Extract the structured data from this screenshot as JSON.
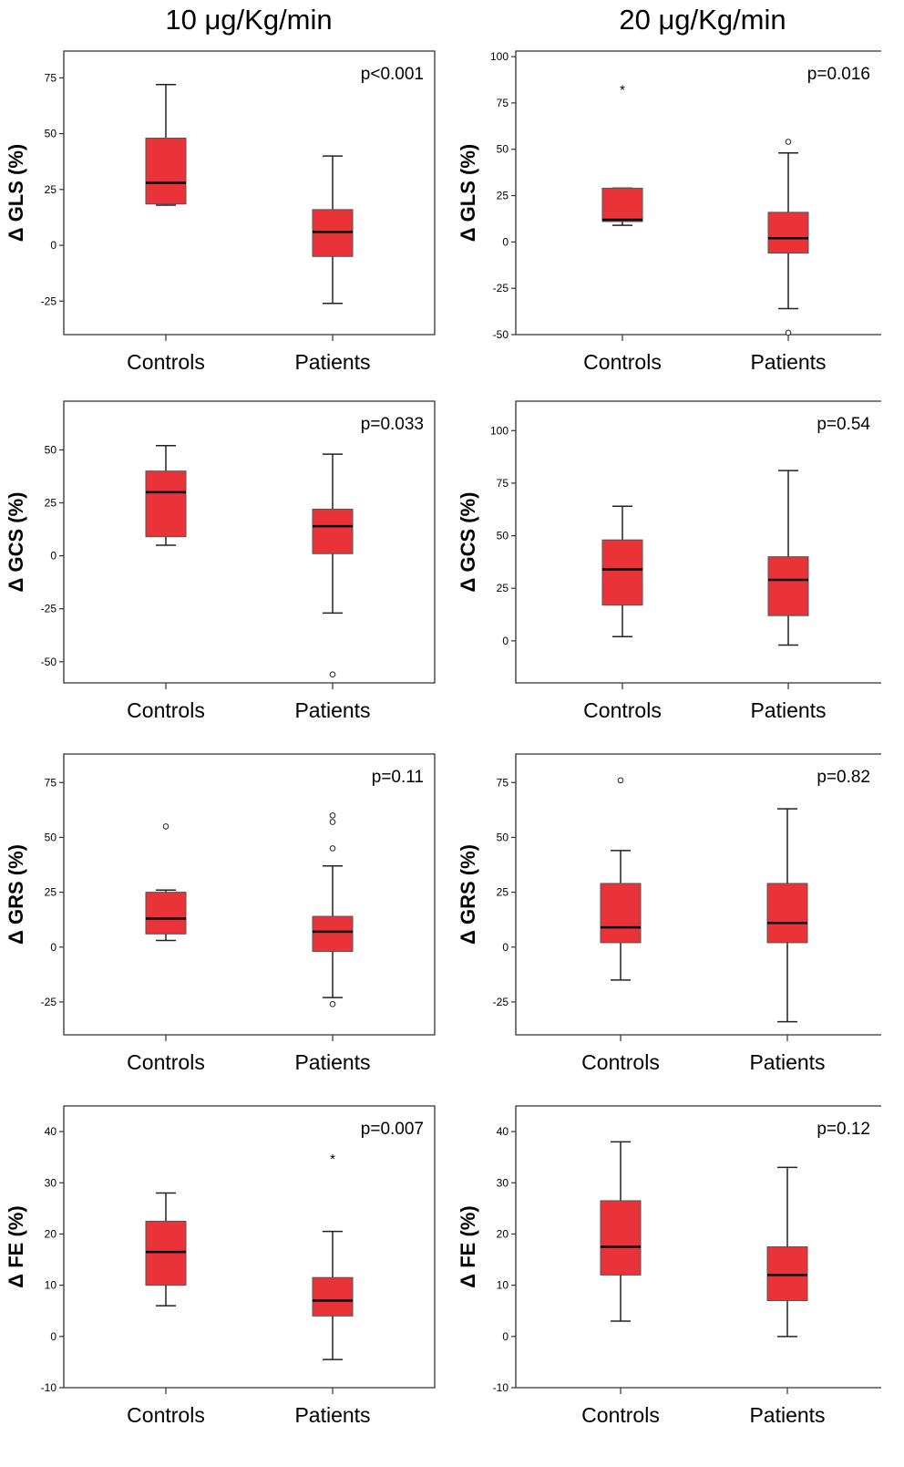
{
  "column_titles": [
    "10 μg/Kg/min",
    "20 μg/Kg/min"
  ],
  "colors": {
    "box_fill": "#ea3339",
    "box_stroke": "#555555",
    "median": "#000000",
    "axis": "#333333"
  },
  "chart_data": [
    {
      "type": "boxplot",
      "ylabel": "Δ GLS (%)",
      "annotation": "p<0.001",
      "yticks": [
        -25,
        0,
        25,
        50,
        75
      ],
      "ylim": [
        -40,
        87
      ],
      "categories": [
        "Controls",
        "Patients"
      ],
      "boxes": [
        {
          "min": 18,
          "q1": 18.5,
          "median": 28,
          "q3": 48,
          "max": 72,
          "outliers": [],
          "extremes": []
        },
        {
          "min": -26,
          "q1": -5,
          "median": 6,
          "q3": 16,
          "max": 40,
          "outliers": [],
          "extremes": []
        }
      ]
    },
    {
      "type": "boxplot",
      "ylabel": "Δ GLS (%)",
      "annotation": "p=0.016",
      "yticks": [
        -50,
        -25,
        0,
        25,
        50,
        75,
        100
      ],
      "ylim": [
        -50,
        103
      ],
      "categories": [
        "Controls",
        "Patients"
      ],
      "boxes": [
        {
          "min": 9,
          "q1": 11,
          "median": 12,
          "q3": 29,
          "max": 29,
          "outliers": [],
          "extremes": [
            83
          ]
        },
        {
          "min": -36,
          "q1": -6,
          "median": 2,
          "q3": 16,
          "max": 48,
          "outliers": [
            54,
            -49
          ],
          "extremes": []
        }
      ]
    },
    {
      "type": "boxplot",
      "ylabel": "Δ GCS (%)",
      "annotation": "p=0.033",
      "yticks": [
        -50,
        -25,
        0,
        25,
        50
      ],
      "ylim": [
        -60,
        73
      ],
      "categories": [
        "Controls",
        "Patients"
      ],
      "boxes": [
        {
          "min": 5,
          "q1": 9,
          "median": 30,
          "q3": 40,
          "max": 52,
          "outliers": [],
          "extremes": []
        },
        {
          "min": -27,
          "q1": 1,
          "median": 14,
          "q3": 22,
          "max": 48,
          "outliers": [
            -56
          ],
          "extremes": []
        }
      ]
    },
    {
      "type": "boxplot",
      "ylabel": "Δ GCS (%)",
      "annotation": "p=0.54",
      "yticks": [
        0,
        25,
        50,
        75,
        100
      ],
      "ylim": [
        -20,
        114
      ],
      "categories": [
        "Controls",
        "Patients"
      ],
      "boxes": [
        {
          "min": 2,
          "q1": 17,
          "median": 34,
          "q3": 48,
          "max": 64,
          "outliers": [],
          "extremes": []
        },
        {
          "min": -2,
          "q1": 12,
          "median": 29,
          "q3": 40,
          "max": 81,
          "outliers": [],
          "extremes": []
        }
      ]
    },
    {
      "type": "boxplot",
      "ylabel": "Δ GRS (%)",
      "annotation": "p=0.11",
      "yticks": [
        -25,
        0,
        25,
        50,
        75
      ],
      "ylim": [
        -40,
        88
      ],
      "categories": [
        "Controls",
        "Patients"
      ],
      "boxes": [
        {
          "min": 3,
          "q1": 6,
          "median": 13,
          "q3": 25,
          "max": 26,
          "outliers": [
            55
          ],
          "extremes": []
        },
        {
          "min": -23,
          "q1": -2,
          "median": 7,
          "q3": 14,
          "max": 37,
          "outliers": [
            60,
            57,
            45,
            -26
          ],
          "extremes": []
        }
      ]
    },
    {
      "type": "boxplot",
      "ylabel": "Δ GRS (%)",
      "annotation": "p=0.82",
      "yticks": [
        -25,
        0,
        25,
        50,
        75
      ],
      "ylim": [
        -40,
        88
      ],
      "categories": [
        "Controls",
        "Patients"
      ],
      "boxes": [
        {
          "min": -15,
          "q1": 2,
          "median": 9,
          "q3": 29,
          "max": 44,
          "outliers": [
            76
          ],
          "extremes": []
        },
        {
          "min": -34,
          "q1": 2,
          "median": 11,
          "q3": 29,
          "max": 63,
          "outliers": [],
          "extremes": []
        }
      ]
    },
    {
      "type": "boxplot",
      "ylabel": "Δ FE (%)",
      "annotation": "p=0.007",
      "yticks": [
        -10,
        0,
        10,
        20,
        30,
        40
      ],
      "ylim": [
        -10,
        45
      ],
      "categories": [
        "Controls",
        "Patients"
      ],
      "boxes": [
        {
          "min": 6,
          "q1": 10,
          "median": 16.5,
          "q3": 22.5,
          "max": 28,
          "outliers": [],
          "extremes": []
        },
        {
          "min": -4.5,
          "q1": 4,
          "median": 7,
          "q3": 11.5,
          "max": 20.5,
          "outliers": [],
          "extremes": [
            35
          ]
        }
      ]
    },
    {
      "type": "boxplot",
      "ylabel": "Δ FE (%)",
      "annotation": "p=0.12",
      "yticks": [
        -10,
        0,
        10,
        20,
        30,
        40
      ],
      "ylim": [
        -10,
        45
      ],
      "categories": [
        "Controls",
        "Patients"
      ],
      "boxes": [
        {
          "min": 3,
          "q1": 12,
          "median": 17.5,
          "q3": 26.5,
          "max": 38,
          "outliers": [],
          "extremes": []
        },
        {
          "min": 0,
          "q1": 7,
          "median": 12,
          "q3": 17.5,
          "max": 33,
          "outliers": [],
          "extremes": []
        }
      ]
    }
  ]
}
